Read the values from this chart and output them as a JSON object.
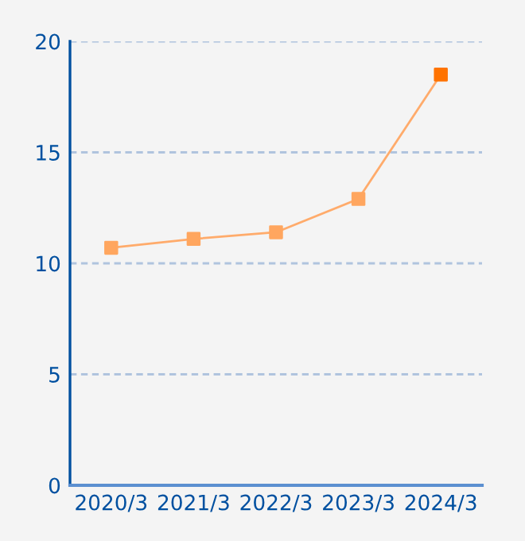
{
  "chart_data": {
    "type": "line",
    "categories": [
      "2020/3",
      "2021/3",
      "2022/3",
      "2023/3",
      "2024/3"
    ],
    "series": [
      {
        "color": "#ffab6b",
        "colors": [
          "#ffa65f",
          "#ffa65f",
          "#ffa65f",
          "#ffa65f",
          "#ff7300"
        ],
        "values": [
          10.7,
          11.1,
          11.4,
          12.9,
          18.5
        ]
      }
    ],
    "ylim": [
      0,
      20
    ],
    "yticks": [
      0,
      5,
      10,
      15,
      20
    ],
    "grid": "y",
    "marker": "square",
    "line_style": "solid",
    "legend": false
  }
}
